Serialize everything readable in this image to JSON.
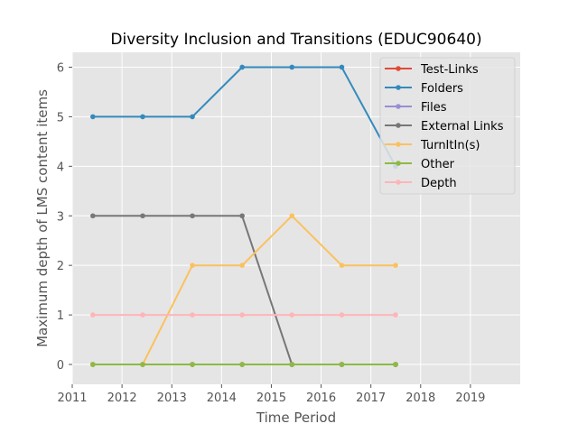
{
  "chart_data": {
    "type": "line",
    "title": "Diversity Inclusion and Transitions (EDUC90640)",
    "xlabel": "Time Period",
    "ylabel": "Maximum depth of LMS content items",
    "xlim": [
      2011,
      2020
    ],
    "ylim": [
      -0.4,
      6.3
    ],
    "xticks": [
      2011,
      2012,
      2013,
      2014,
      2015,
      2016,
      2017,
      2018,
      2019
    ],
    "yticks": [
      0,
      1,
      2,
      3,
      4,
      5,
      6
    ],
    "x": [
      "2011-06-01",
      "2012-06-01",
      "2013-06-01",
      "2014-06-01",
      "2015-06-01",
      "2016-06-01",
      "2017-07-01"
    ],
    "grid": true,
    "legend_position": "top-right",
    "series": [
      {
        "name": "Test-Links",
        "color": "#E24A33",
        "values": [
          0,
          0,
          0,
          0,
          0,
          0,
          0
        ]
      },
      {
        "name": "Folders",
        "color": "#348ABD",
        "values": [
          5,
          5,
          5,
          6,
          6,
          6,
          4
        ]
      },
      {
        "name": "Files",
        "color": "#988ED5",
        "values": [
          0,
          0,
          0,
          0,
          0,
          0,
          0
        ]
      },
      {
        "name": "External Links",
        "color": "#777777",
        "values": [
          3,
          3,
          3,
          3,
          0,
          0,
          0
        ]
      },
      {
        "name": "TurnItIn(s)",
        "color": "#FBC15E",
        "values": [
          0,
          0,
          2,
          2,
          3,
          2,
          2
        ]
      },
      {
        "name": "Other",
        "color": "#8EBA42",
        "values": [
          0,
          0,
          0,
          0,
          0,
          0,
          0
        ]
      },
      {
        "name": "Depth",
        "color": "#FFB5B8",
        "values": [
          1,
          1,
          1,
          1,
          1,
          1,
          1
        ]
      }
    ]
  }
}
